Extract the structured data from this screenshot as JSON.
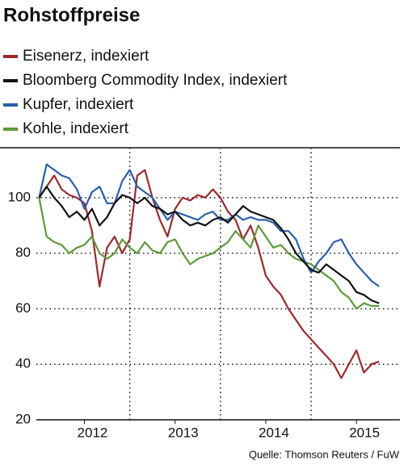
{
  "chart_data": {
    "type": "line",
    "title": "Rohstoffpreise",
    "source": "Quelle: Thomson Reuters / FuW",
    "x": [
      2012,
      2012.083,
      2012.167,
      2012.25,
      2012.333,
      2012.417,
      2012.5,
      2012.583,
      2012.667,
      2012.75,
      2012.833,
      2012.917,
      2013,
      2013.083,
      2013.167,
      2013.25,
      2013.333,
      2013.417,
      2013.5,
      2013.583,
      2013.667,
      2013.75,
      2013.833,
      2013.917,
      2014,
      2014.083,
      2014.167,
      2014.25,
      2014.333,
      2014.417,
      2014.5,
      2014.583,
      2014.667,
      2014.75,
      2014.833,
      2014.917,
      2015,
      2015.083,
      2015.167,
      2015.25,
      2015.333,
      2015.417,
      2015.5,
      2015.583,
      2015.667,
      2015.75
    ],
    "series": [
      {
        "name": "Eisenerz, indexiert",
        "color": "#a0282b",
        "values": [
          100,
          104,
          108,
          103,
          101,
          100,
          98,
          88,
          68,
          82,
          86,
          80,
          85,
          108,
          110,
          100,
          92,
          86,
          96,
          100,
          99,
          101,
          100,
          103,
          100,
          95,
          92,
          85,
          90,
          82,
          72,
          68,
          65,
          60,
          56,
          52,
          49,
          46,
          43,
          40,
          35,
          40,
          45,
          37,
          40,
          41
        ]
      },
      {
        "name": "Bloomberg Commodity Index, indexiert",
        "color": "#111111",
        "values": [
          100,
          104,
          100,
          97,
          93,
          95,
          92,
          96,
          90,
          93,
          98,
          101,
          100,
          98,
          100,
          97,
          96,
          94,
          95,
          92,
          90,
          91,
          90,
          92,
          93,
          91,
          94,
          97,
          95,
          94,
          93,
          92,
          89,
          85,
          80,
          77,
          74,
          73,
          76,
          74,
          72,
          70,
          66,
          65,
          63,
          62
        ]
      },
      {
        "name": "Kupfer, indexiert",
        "color": "#2a5fae",
        "values": [
          100,
          112,
          110,
          108,
          107,
          103,
          96,
          102,
          104,
          98,
          98,
          106,
          110,
          104,
          102,
          100,
          96,
          92,
          95,
          94,
          93,
          92,
          94,
          95,
          92,
          92,
          94,
          92,
          93,
          92,
          92,
          91,
          88,
          88,
          85,
          78,
          73,
          77,
          80,
          84,
          85,
          80,
          76,
          73,
          70,
          68
        ]
      },
      {
        "name": "Kohle, indexiert",
        "color": "#5e9a3a",
        "values": [
          100,
          86,
          84,
          83,
          80,
          82,
          83,
          86,
          80,
          78,
          80,
          85,
          82,
          80,
          84,
          81,
          80,
          84,
          85,
          80,
          76,
          78,
          79,
          80,
          82,
          84,
          88,
          85,
          82,
          90,
          86,
          82,
          83,
          80,
          78,
          77,
          76,
          74,
          72,
          70,
          66,
          64,
          60,
          62,
          61,
          61
        ]
      }
    ],
    "xlim": [
      2011.97,
      2015.98
    ],
    "xticks": [
      {
        "value": 2012.5,
        "label": "2012"
      },
      {
        "value": 2013.5,
        "label": "2013"
      },
      {
        "value": 2014.5,
        "label": "2014"
      },
      {
        "value": 2015.5,
        "label": "2015"
      }
    ],
    "xgrid": [
      2013,
      2014,
      2015
    ],
    "ylim": [
      20,
      118
    ],
    "yticks": [
      20,
      40,
      60,
      80,
      100
    ],
    "grid": true
  }
}
